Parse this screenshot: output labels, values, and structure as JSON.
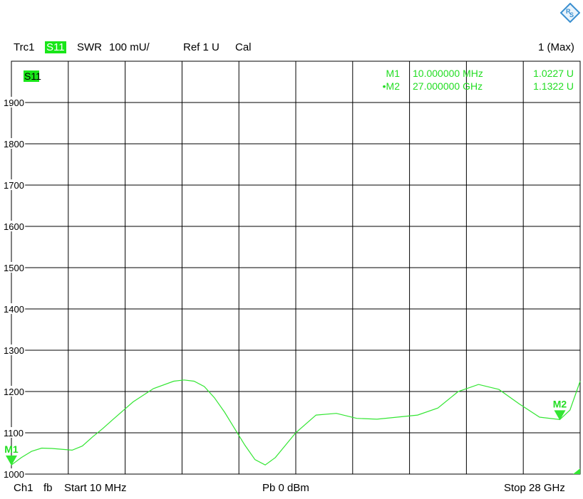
{
  "header": {
    "trace": "Trc1",
    "param": "S11",
    "format": "SWR",
    "scale": "100 mU/",
    "ref": "Ref 1 U",
    "cal": "Cal",
    "window": "1 (Max)"
  },
  "footer": {
    "channel": "Ch1",
    "sweep": "fb",
    "start": "Start  10 MHz",
    "power": "Pb   0 dBm",
    "stop": "Stop  28 GHz"
  },
  "trace_label": "S11",
  "markers": [
    {
      "id": "M1",
      "prefix": "M1",
      "freq": "10.000000 MHz",
      "value": "1.0227 U",
      "label": "M1",
      "x_ghz": 0.01,
      "y": 1022.7
    },
    {
      "id": "M2",
      "prefix": "•M2",
      "freq": "27.000000 GHz",
      "value": "1.1322 U",
      "label": "M2",
      "x_ghz": 27.0,
      "y": 1132.2
    }
  ],
  "colors": {
    "trace": "#33e633",
    "highlight": "#19e619",
    "grid": "#000000",
    "marker_text": "#22dd22",
    "logo": "#3a8fd0"
  },
  "icons": {
    "logo": "rohde-schwarz-logo-icon"
  },
  "chart_data": {
    "type": "line",
    "title": "",
    "xlabel": "",
    "ylabel": "",
    "xlim": [
      0.01,
      28
    ],
    "ylim": [
      1000,
      2000
    ],
    "grid": true,
    "x_divisions": 10,
    "yticks": [
      1000,
      1100,
      1200,
      1300,
      1400,
      1500,
      1600,
      1700,
      1800,
      1900
    ],
    "ytick_labels": [
      "1000",
      "1100",
      "1200",
      "1300",
      "1400",
      "1500",
      "1600",
      "1700",
      "1800",
      "1900"
    ],
    "series": [
      {
        "name": "S11",
        "x": [
          0.01,
          0.5,
          1.0,
          1.5,
          2.0,
          3.0,
          3.5,
          4.0,
          4.5,
          5.0,
          6.0,
          7.0,
          8.0,
          8.5,
          9.0,
          9.5,
          10.0,
          10.5,
          11.0,
          11.5,
          12.0,
          12.5,
          13.0,
          14.0,
          15.0,
          16.0,
          17.0,
          18.0,
          19.0,
          20.0,
          21.0,
          22.0,
          23.0,
          24.0,
          25.0,
          26.0,
          27.0,
          27.5,
          28.0
        ],
        "y": [
          1022,
          1040,
          1055,
          1063,
          1062,
          1058,
          1068,
          1090,
          1110,
          1132,
          1175,
          1207,
          1225,
          1228,
          1225,
          1212,
          1185,
          1150,
          1110,
          1070,
          1035,
          1022,
          1040,
          1100,
          1143,
          1147,
          1135,
          1133,
          1138,
          1143,
          1160,
          1200,
          1217,
          1205,
          1170,
          1138,
          1132,
          1155,
          1225
        ]
      }
    ]
  }
}
